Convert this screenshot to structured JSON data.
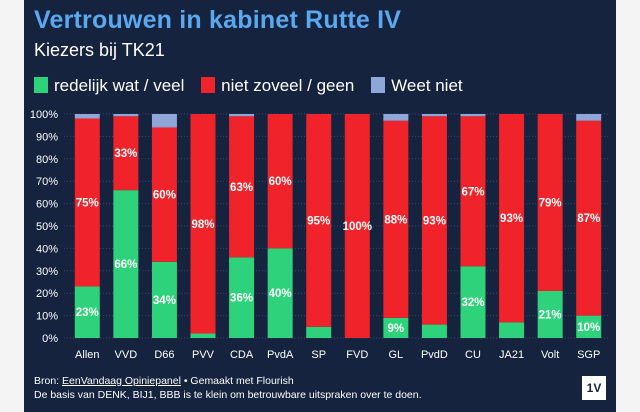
{
  "title": "Vertrouwen in kabinet Rutte IV",
  "subtitle": "Kiezers bij TK21",
  "legend": [
    {
      "label": "redelijk wat / veel",
      "color": "#2ed27a"
    },
    {
      "label": "niet zoveel / geen",
      "color": "#f0232a"
    },
    {
      "label": "Weet niet",
      "color": "#8fa6d8"
    }
  ],
  "footer": {
    "source_prefix": "Bron: ",
    "source_link": "EenVandaag Opiniepanel",
    "source_suffix": " • Gemaakt met Flourish",
    "note": "De basis van DENK, BIJ1, BBB is te klein om betrouwbare uitspraken over te doen.",
    "logo": "1V"
  },
  "chart_data": {
    "type": "bar",
    "stacked": true,
    "title": "Vertrouwen in kabinet Rutte IV",
    "subtitle": "Kiezers bij TK21",
    "categories": [
      "Allen",
      "VVD",
      "D66",
      "PVV",
      "CDA",
      "PvdA",
      "SP",
      "FVD",
      "GL",
      "PvdD",
      "CU",
      "JA21",
      "Volt",
      "SGP"
    ],
    "series": [
      {
        "name": "redelijk wat / veel",
        "color": "#2ed27a",
        "values": [
          23,
          66,
          34,
          2,
          36,
          40,
          5,
          0,
          9,
          6,
          32,
          7,
          21,
          10
        ],
        "labels": [
          "23%",
          "66%",
          "34%",
          "",
          "36%",
          "40%",
          "",
          "",
          "9%",
          "",
          "32%",
          "",
          "21%",
          "10%"
        ]
      },
      {
        "name": "niet zoveel / geen",
        "color": "#f0232a",
        "values": [
          75,
          33,
          60,
          98,
          63,
          60,
          95,
          100,
          88,
          93,
          67,
          93,
          79,
          87
        ],
        "labels": [
          "75%",
          "33%",
          "60%",
          "98%",
          "63%",
          "60%",
          "95%",
          "100%",
          "88%",
          "93%",
          "67%",
          "93%",
          "79%",
          "87%"
        ]
      },
      {
        "name": "Weet niet",
        "color": "#8fa6d8",
        "values": [
          2,
          1,
          6,
          0,
          1,
          0,
          0,
          0,
          3,
          1,
          1,
          0,
          0,
          3
        ],
        "labels": [
          "",
          "",
          "",
          "",
          "",
          "",
          "",
          "",
          "",
          "",
          "",
          "",
          "",
          ""
        ]
      }
    ],
    "yticks": [
      "0%",
      "10%",
      "20%",
      "30%",
      "40%",
      "50%",
      "60%",
      "70%",
      "80%",
      "90%",
      "100%"
    ],
    "ylim": [
      0,
      100
    ],
    "xlabel": "",
    "ylabel": "",
    "grid": true,
    "legend_position": "top"
  }
}
